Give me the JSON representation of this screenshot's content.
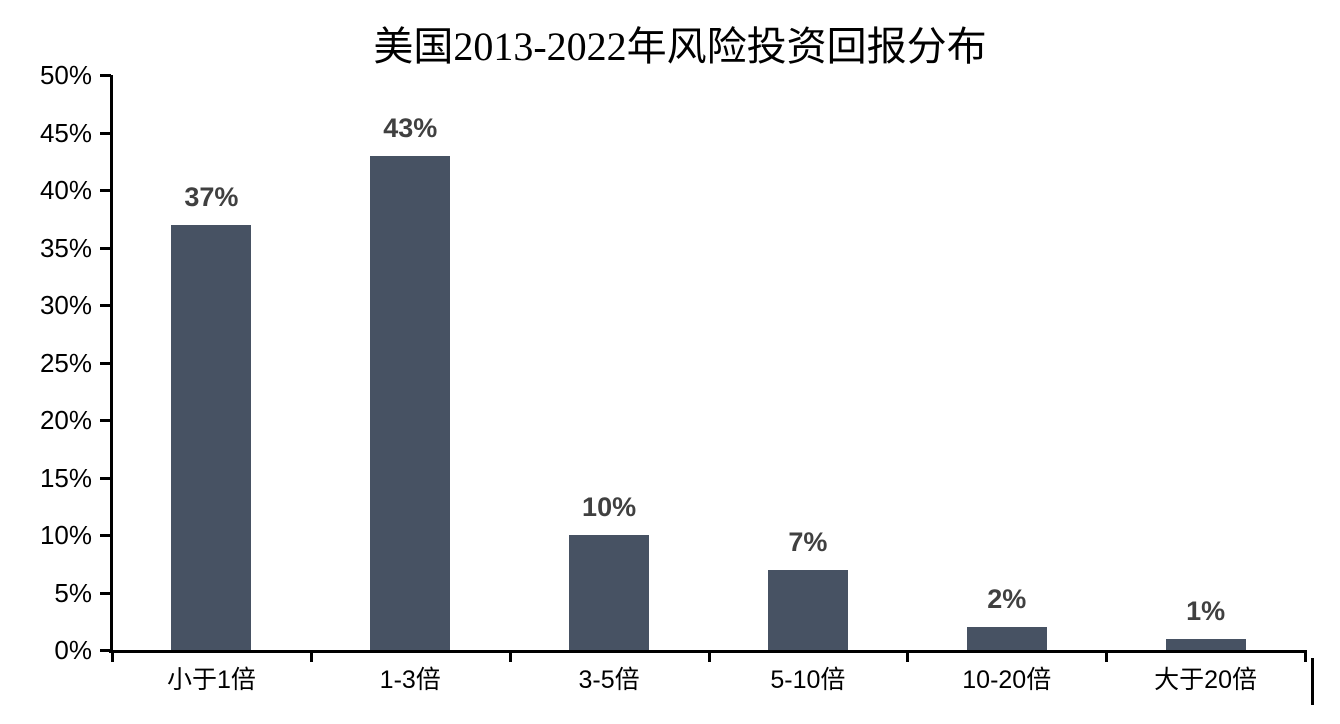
{
  "chart_data": {
    "type": "bar",
    "title": "美国2013-2022年风险投资回报分布",
    "categories": [
      "小于1倍",
      "1-3倍",
      "3-5倍",
      "5-10倍",
      "10-20倍",
      "大于20倍"
    ],
    "values": [
      37,
      43,
      10,
      7,
      2,
      1
    ],
    "data_labels": [
      "37%",
      "43%",
      "10%",
      "7%",
      "2%",
      "1%"
    ],
    "y_tick_labels": [
      "0%",
      "5%",
      "10%",
      "15%",
      "20%",
      "25%",
      "30%",
      "35%",
      "40%",
      "45%",
      "50%"
    ],
    "ylim": [
      0,
      50
    ],
    "y_step": 5,
    "xlabel": "",
    "ylabel": "",
    "grid": false,
    "legend": "none",
    "bar_color": "#475263",
    "data_label_color": "#404040",
    "axis_color": "#000000",
    "background_color": "#ffffff"
  }
}
